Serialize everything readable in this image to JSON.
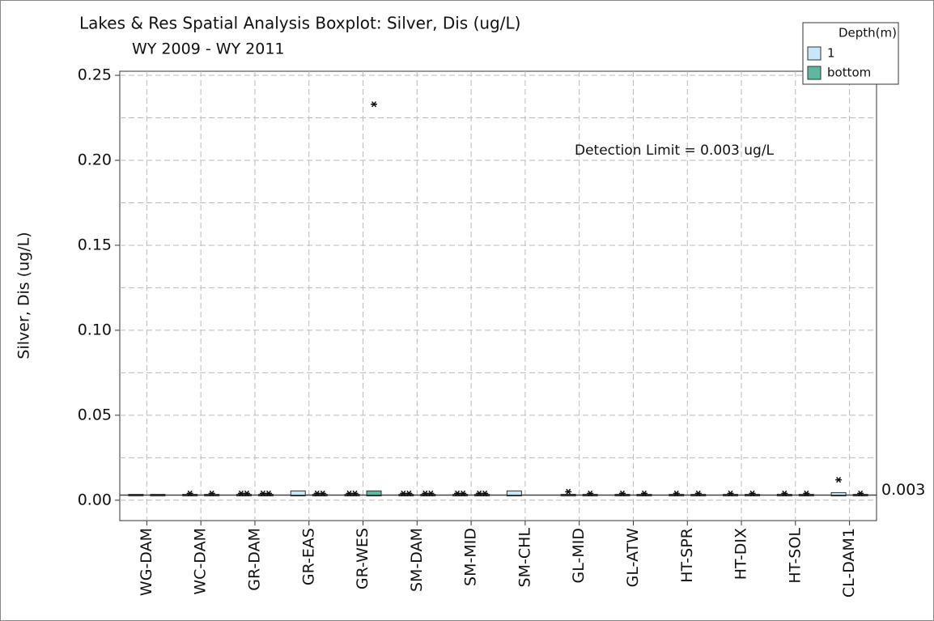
{
  "chart_data": {
    "type": "boxplot",
    "title": "Lakes & Res Spatial Analysis Boxplot: Silver, Dis (ug/L)",
    "subtitle": "WY 2009 - WY 2011",
    "y_label": "Silver, Dis (ug/L)",
    "legend_title": "Depth(m)",
    "legend_position": "top-right",
    "grid": true,
    "categories": [
      "WG-DAM",
      "WC-DAM",
      "GR-DAM",
      "GR-EAS",
      "GR-WES",
      "SM-DAM",
      "SM-MID",
      "SM-CHL",
      "GL-MID",
      "GL-ATW",
      "HT-SPR",
      "HT-DIX",
      "HT-SOL",
      "CL-DAM1"
    ],
    "ylim": [
      -0.012,
      0.2524
    ],
    "yticks": [
      {
        "value": 0,
        "label": "0.00"
      },
      {
        "value": 0.05,
        "label": "0.05"
      },
      {
        "value": 0.1,
        "label": "0.10"
      },
      0.15,
      {
        "value": 0.2,
        "label": "0.20"
      },
      0.25
    ],
    "reference_line": {
      "value": 0.003,
      "label": "0.003"
    },
    "annotation": "Detection Limit = 0.003 ug/L",
    "series": [
      {
        "name": "1",
        "color": "#c9e6f9",
        "boxes": [
          {
            "q1": 0.003,
            "median": 0.003,
            "q3": 0.003,
            "outliers": []
          },
          {
            "q1": 0.003,
            "median": 0.003,
            "q3": 0.003,
            "outliers": [
              0.004
            ]
          },
          {
            "q1": 0.003,
            "median": 0.003,
            "q3": 0.003,
            "outliers": [
              0.004,
              0.004
            ]
          },
          {
            "q1": 0.003,
            "median": 0.003,
            "q3": 0.005,
            "outliers": []
          },
          {
            "q1": 0.003,
            "median": 0.003,
            "q3": 0.003,
            "outliers": [
              0.004,
              0.004
            ]
          },
          {
            "q1": 0.003,
            "median": 0.003,
            "q3": 0.003,
            "outliers": [
              0.004,
              0.004
            ]
          },
          {
            "q1": 0.003,
            "median": 0.003,
            "q3": 0.003,
            "outliers": [
              0.004,
              0.004
            ]
          },
          {
            "q1": 0.003,
            "median": 0.003,
            "q3": 0.005,
            "outliers": []
          },
          {
            "q1": 0.003,
            "median": 0.003,
            "q3": 0.003,
            "outliers": [
              0.005
            ]
          },
          {
            "q1": 0.003,
            "median": 0.003,
            "q3": 0.003,
            "outliers": [
              0.004
            ]
          },
          {
            "q1": 0.003,
            "median": 0.003,
            "q3": 0.003,
            "outliers": [
              0.004
            ]
          },
          {
            "q1": 0.003,
            "median": 0.003,
            "q3": 0.003,
            "outliers": [
              0.004
            ]
          },
          {
            "q1": 0.003,
            "median": 0.003,
            "q3": 0.003,
            "outliers": [
              0.004
            ]
          },
          {
            "q1": 0.003,
            "median": 0.003,
            "q3": 0.004,
            "outliers": [
              0.012
            ]
          }
        ]
      },
      {
        "name": "bottom",
        "color": "#5cb8a0",
        "boxes": [
          {
            "q1": 0.003,
            "median": 0.003,
            "q3": 0.003,
            "outliers": []
          },
          {
            "q1": 0.003,
            "median": 0.003,
            "q3": 0.003,
            "outliers": [
              0.004
            ]
          },
          {
            "q1": 0.003,
            "median": 0.003,
            "q3": 0.003,
            "outliers": [
              0.004,
              0.004
            ]
          },
          {
            "q1": 0.003,
            "median": 0.003,
            "q3": 0.003,
            "outliers": [
              0.004,
              0.004
            ]
          },
          {
            "q1": 0.003,
            "median": 0.003,
            "q3": 0.005,
            "outliers": [
              0.233
            ]
          },
          {
            "q1": 0.003,
            "median": 0.003,
            "q3": 0.003,
            "outliers": [
              0.004,
              0.004
            ]
          },
          {
            "q1": 0.003,
            "median": 0.003,
            "q3": 0.003,
            "outliers": [
              0.004,
              0.004
            ]
          },
          null,
          {
            "q1": 0.003,
            "median": 0.003,
            "q3": 0.003,
            "outliers": [
              0.004
            ]
          },
          {
            "q1": 0.003,
            "median": 0.003,
            "q3": 0.003,
            "outliers": [
              0.004
            ]
          },
          {
            "q1": 0.003,
            "median": 0.003,
            "q3": 0.003,
            "outliers": [
              0.004
            ]
          },
          {
            "q1": 0.003,
            "median": 0.003,
            "q3": 0.003,
            "outliers": [
              0.004
            ]
          },
          {
            "q1": 0.003,
            "median": 0.003,
            "q3": 0.003,
            "outliers": [
              0.004
            ]
          },
          {
            "q1": 0.003,
            "median": 0.003,
            "q3": 0.003,
            "outliers": [
              0.004
            ]
          }
        ]
      }
    ]
  }
}
